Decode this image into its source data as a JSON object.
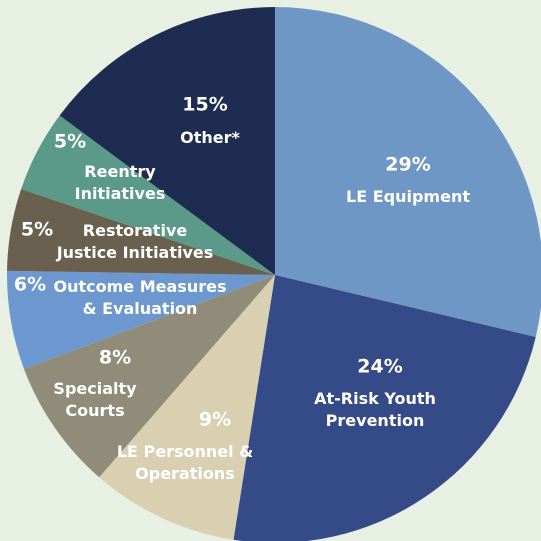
{
  "chart_data": {
    "type": "pie",
    "categories": [
      "LE Equipment",
      "At-Risk Youth Prevention",
      "LE Personnel & Operations",
      "Specialty Courts",
      "Outcome Measures & Evaluation",
      "Restorative Justice Initiatives",
      "Reentry Initiatives",
      "Other*"
    ],
    "values": [
      29,
      24,
      9,
      8,
      6,
      5,
      5,
      15
    ],
    "value_labels": [
      "29%",
      "24%",
      "9%",
      "8%",
      "6%",
      "5%",
      "5%",
      "15%"
    ],
    "colors": [
      "#6f97c6",
      "#354b87",
      "#d9cfb1",
      "#918b79",
      "#6c98cf",
      "#6a604f",
      "#5b9a89",
      "#1f2c52"
    ]
  }
}
